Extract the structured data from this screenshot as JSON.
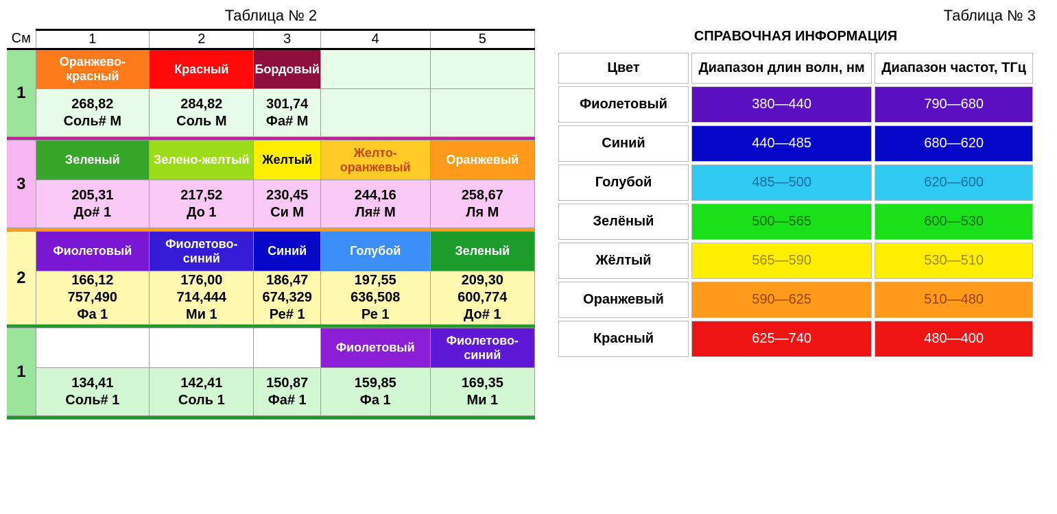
{
  "table2": {
    "title": "Таблица № 2",
    "corner": "См",
    "cols": [
      "1",
      "2",
      "3",
      "4",
      "5"
    ],
    "groups": [
      {
        "label": "1",
        "label_bg": "#9be49b",
        "sep_color": "#000000",
        "color_row_bg": "#e8fbe8",
        "data_row_bg": "#e8fbe8",
        "colors": [
          {
            "label": "Оранжево-красный",
            "bg": "#ff7a1a",
            "fg": "#ffffff"
          },
          {
            "label": "Красный",
            "bg": "#ff0a0a",
            "fg": "#ffffff"
          },
          {
            "label": "Бордовый",
            "bg": "#8e0e3c",
            "fg": "#ffffff"
          },
          {
            "label": "",
            "bg": "#e8fbe8",
            "fg": "#000000"
          },
          {
            "label": "",
            "bg": "#e8fbe8",
            "fg": "#000000"
          }
        ],
        "data": [
          {
            "lines": [
              "268,82",
              "Соль# М"
            ]
          },
          {
            "lines": [
              "284,82",
              "Соль М"
            ]
          },
          {
            "lines": [
              "301,74",
              "Фа# М"
            ]
          },
          {
            "lines": [
              "",
              ""
            ]
          },
          {
            "lines": [
              "",
              ""
            ]
          }
        ]
      },
      {
        "label": "3",
        "label_bg": "#f8b7f2",
        "sep_color": "#c21f9b",
        "color_row_bg": "#f8b7f2",
        "data_row_bg": "#f9c8f4",
        "colors": [
          {
            "label": "Зеленый",
            "bg": "#37a62a",
            "fg": "#ffffff"
          },
          {
            "label": "Зелено-желтый",
            "bg": "#9edb1a",
            "fg": "#ffffff"
          },
          {
            "label": "Желтый",
            "bg": "#ffee00",
            "fg": "#000000"
          },
          {
            "label": "Желто-оранжевый",
            "bg": "#ffca28",
            "fg": "#c24a00"
          },
          {
            "label": "Оранжевый",
            "bg": "#ff9a1a",
            "fg": "#ffffff"
          }
        ],
        "data": [
          {
            "lines": [
              "205,31",
              "До# 1"
            ]
          },
          {
            "lines": [
              "217,52",
              "До 1"
            ]
          },
          {
            "lines": [
              "230,45",
              "Си М"
            ]
          },
          {
            "lines": [
              "244,16",
              "Ля# М"
            ]
          },
          {
            "lines": [
              "258,67",
              "Ля М"
            ]
          }
        ]
      },
      {
        "label": "2",
        "label_bg": "#fff9b0",
        "sep_color": "#ff9a1a",
        "color_row_bg": "#fff9b0",
        "data_row_bg": "#fff9b0",
        "colors": [
          {
            "label": "Фиолетовый",
            "bg": "#7a17d4",
            "fg": "#ffffff"
          },
          {
            "label": "Фиолетово-синий",
            "bg": "#351bd6",
            "fg": "#ffffff"
          },
          {
            "label": "Синий",
            "bg": "#0707c9",
            "fg": "#ffffff"
          },
          {
            "label": "Голубой",
            "bg": "#3b8ef5",
            "fg": "#ffffff"
          },
          {
            "label": "Зеленый",
            "bg": "#1c9c2a",
            "fg": "#ffffff"
          }
        ],
        "data": [
          {
            "lines": [
              "166,12",
              "757,490",
              "Фа 1"
            ]
          },
          {
            "lines": [
              "176,00",
              "714,444",
              "Ми 1"
            ]
          },
          {
            "lines": [
              "186,47",
              "674,329",
              "Ре# 1"
            ]
          },
          {
            "lines": [
              "197,55",
              "636,508",
              "Ре 1"
            ]
          },
          {
            "lines": [
              "209,30",
              "600,774",
              "До# 1"
            ]
          }
        ]
      },
      {
        "label": "1",
        "label_bg": "#9be49b",
        "sep_color": "#1c9c2a",
        "color_row_bg": "#e8fbe8",
        "data_row_bg": "#d3f6d3",
        "colors": [
          {
            "label": "",
            "bg": "#ffffff",
            "fg": "#000000"
          },
          {
            "label": "",
            "bg": "#ffffff",
            "fg": "#000000"
          },
          {
            "label": "",
            "bg": "#ffffff",
            "fg": "#000000"
          },
          {
            "label": "Фиолетовый",
            "bg": "#8c1fd6",
            "fg": "#ffffff"
          },
          {
            "label": "Фиолетово-синий",
            "bg": "#5f18d6",
            "fg": "#ffffff"
          }
        ],
        "data": [
          {
            "lines": [
              "134,41",
              "Соль# 1"
            ]
          },
          {
            "lines": [
              "142,41",
              "Соль 1"
            ]
          },
          {
            "lines": [
              "150,87",
              "Фа# 1"
            ]
          },
          {
            "lines": [
              "159,85",
              "Фа 1"
            ]
          },
          {
            "lines": [
              "169,35",
              "Ми 1"
            ]
          }
        ]
      }
    ]
  },
  "table3": {
    "title": "Таблица № 3",
    "subtitle": "СПРАВОЧНАЯ ИНФОРМАЦИЯ",
    "headers": [
      "Цвет",
      "Диапазон длин волн, нм",
      "Диапазон частот, ТГц"
    ],
    "rows": [
      {
        "name": "Фиолетовый",
        "wave": "380—440",
        "freq": "790—680",
        "bg": "#5a0fc0",
        "fg": "#ffffff"
      },
      {
        "name": "Синий",
        "wave": "440—485",
        "freq": "680—620",
        "bg": "#0707c9",
        "fg": "#ffffff"
      },
      {
        "name": "Голубой",
        "wave": "485—500",
        "freq": "620—600",
        "bg": "#2fc9f2",
        "fg": "#176f9e"
      },
      {
        "name": "Зелёный",
        "wave": "500—565",
        "freq": "600—530",
        "bg": "#19e019",
        "fg": "#0b6b0b"
      },
      {
        "name": "Жёлтый",
        "wave": "565—590",
        "freq": "530—510",
        "bg": "#ffee00",
        "fg": "#9b8a09"
      },
      {
        "name": "Оранжевый",
        "wave": "590—625",
        "freq": "510—480",
        "bg": "#ff9a1a",
        "fg": "#924500"
      },
      {
        "name": "Красный",
        "wave": "625—740",
        "freq": "480—400",
        "bg": "#f01515",
        "fg": "#ffffff"
      }
    ]
  }
}
